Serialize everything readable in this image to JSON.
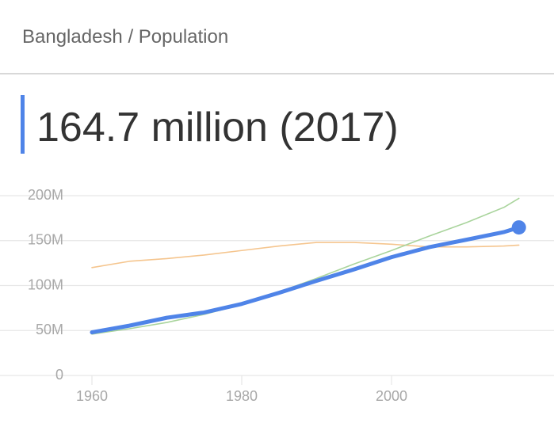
{
  "chart_data": {
    "type": "line",
    "title": "Bangladesh / Population",
    "subtitle": "164.7 million (2017)",
    "x": [
      1960,
      1965,
      1970,
      1975,
      1980,
      1985,
      1990,
      1995,
      2000,
      2005,
      2010,
      2015,
      2017
    ],
    "series": [
      {
        "color": "#f5c58e",
        "width": 1.6,
        "values": [
          120,
          127,
          130,
          134,
          139,
          144,
          148,
          148,
          146,
          143,
          143,
          144,
          145
        ]
      },
      {
        "color": "#a9d49c",
        "width": 1.6,
        "values": [
          46,
          52,
          59,
          68,
          79,
          93,
          108,
          124,
          139,
          155,
          170,
          187,
          197
        ]
      },
      {
        "color": "#4f84e8",
        "width": 5,
        "end_dot": true,
        "values": [
          48,
          55.4,
          64.2,
          70.1,
          79.6,
          92,
          105.3,
          118,
          131.6,
          142.7,
          151,
          159.5,
          164.7
        ]
      }
    ],
    "xlim": [
      1958,
      2021
    ],
    "xticks": [
      1960,
      1980,
      2000
    ],
    "ylim": [
      0,
      200
    ],
    "yticks": [
      0,
      {
        "value": 50,
        "label": "50M"
      },
      {
        "value": 100,
        "label": "100M"
      },
      {
        "value": 150,
        "label": "150M"
      },
      {
        "value": 200,
        "label": "200M"
      }
    ],
    "grid": true
  }
}
